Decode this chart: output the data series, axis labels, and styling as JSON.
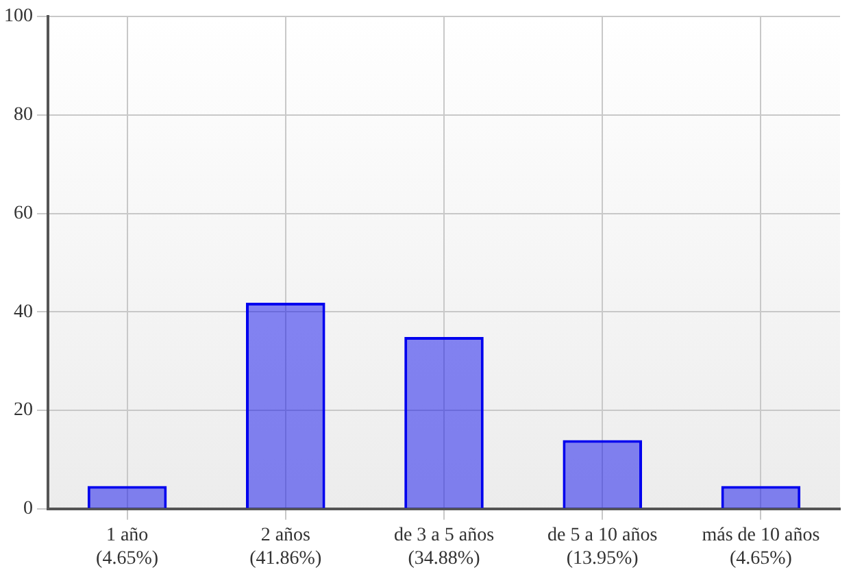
{
  "chart_data": {
    "type": "bar",
    "categories": [
      "1 año\n(4.65%)",
      "2 años\n(41.86%)",
      "de 3 a 5 años\n(34.88%)",
      "de 5 a 10 años\n(13.95%)",
      "más de 10 años\n(4.65%)"
    ],
    "values": [
      4.65,
      41.86,
      34.88,
      13.95,
      4.65
    ],
    "color": "#0000ee",
    "ylim": [
      0,
      100
    ],
    "yticks": [
      0,
      20,
      40,
      60,
      80,
      100
    ],
    "grid": true,
    "legend": false
  }
}
